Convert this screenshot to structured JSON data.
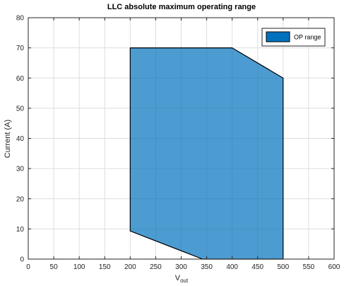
{
  "chart_data": {
    "type": "area",
    "title": "LLC absolute maximum operating range",
    "xlabel": {
      "base": "V",
      "sub": "out"
    },
    "ylabel": "Current (A)",
    "xlim": [
      0,
      600
    ],
    "ylim": [
      0,
      80
    ],
    "xticks": [
      0,
      50,
      100,
      150,
      200,
      250,
      300,
      350,
      400,
      450,
      500,
      550,
      600
    ],
    "yticks": [
      0,
      10,
      20,
      30,
      40,
      50,
      60,
      70,
      80
    ],
    "grid": true,
    "legend_position": "top-right",
    "series": [
      {
        "name": "OP range",
        "color": "#0072BD",
        "fill_opacity": 0.7,
        "polygon": [
          {
            "x": 200,
            "y": 9.3
          },
          {
            "x": 200,
            "y": 70
          },
          {
            "x": 400,
            "y": 70
          },
          {
            "x": 500,
            "y": 60
          },
          {
            "x": 500,
            "y": 0
          },
          {
            "x": 342,
            "y": 0
          }
        ]
      }
    ]
  }
}
